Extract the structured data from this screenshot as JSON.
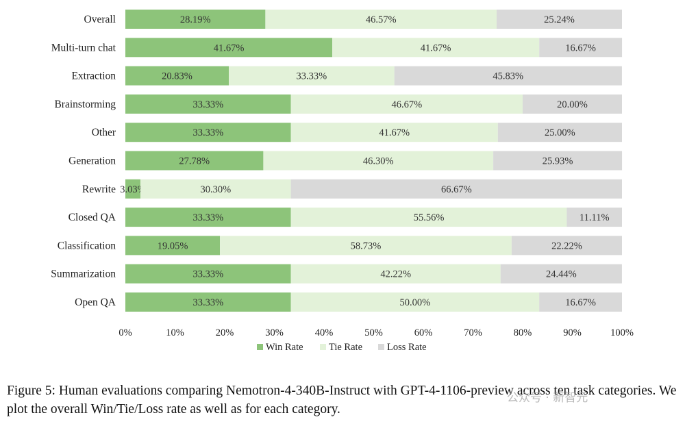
{
  "chart_data": {
    "type": "bar",
    "orientation": "horizontal",
    "stacked": true,
    "categories": [
      "Overall",
      "Multi-turn chat",
      "Extraction",
      "Brainstorming",
      "Other",
      "Generation",
      "Rewrite",
      "Closed QA",
      "Classification",
      "Summarization",
      "Open QA"
    ],
    "series": [
      {
        "name": "Win Rate",
        "color": "#8dc47a",
        "values": [
          28.19,
          41.67,
          20.83,
          33.33,
          33.33,
          27.78,
          3.03,
          33.33,
          19.05,
          33.33,
          33.33
        ],
        "labels": [
          "28.19%",
          "41.67%",
          "20.83%",
          "33.33%",
          "33.33%",
          "27.78%",
          "3.03%",
          "33.33%",
          "19.05%",
          "33.33%",
          "33.33%"
        ]
      },
      {
        "name": "Tie Rate",
        "color": "#e3f2d9",
        "values": [
          46.57,
          41.67,
          33.33,
          46.67,
          41.67,
          46.3,
          30.3,
          55.56,
          58.73,
          42.22,
          50.0
        ],
        "labels": [
          "46.57%",
          "41.67%",
          "33.33%",
          "46.67%",
          "41.67%",
          "46.30%",
          "30.30%",
          "55.56%",
          "58.73%",
          "42.22%",
          "50.00%"
        ]
      },
      {
        "name": "Loss Rate",
        "color": "#d9d9d9",
        "values": [
          25.24,
          16.67,
          45.83,
          20.0,
          25.0,
          25.93,
          66.67,
          11.11,
          22.22,
          24.44,
          16.67
        ],
        "labels": [
          "25.24%",
          "16.67%",
          "45.83%",
          "20.00%",
          "25.00%",
          "25.93%",
          "66.67%",
          "11.11%",
          "22.22%",
          "24.44%",
          "16.67%"
        ]
      }
    ],
    "xlim": [
      0,
      100
    ],
    "xticks": [
      "0%",
      "10%",
      "20%",
      "30%",
      "40%",
      "50%",
      "60%",
      "70%",
      "80%",
      "90%",
      "100%"
    ],
    "legend": [
      "Win Rate",
      "Tie Rate",
      "Loss Rate"
    ],
    "legend_position": "bottom",
    "grid": false
  },
  "caption": "Figure 5: Human evaluations comparing Nemotron-4-340B-Instruct with GPT-4-1106-preview across ten task categories. We plot the overall Win/Tie/Loss rate as well as for each category.",
  "watermark": "公众号 · 新智元"
}
